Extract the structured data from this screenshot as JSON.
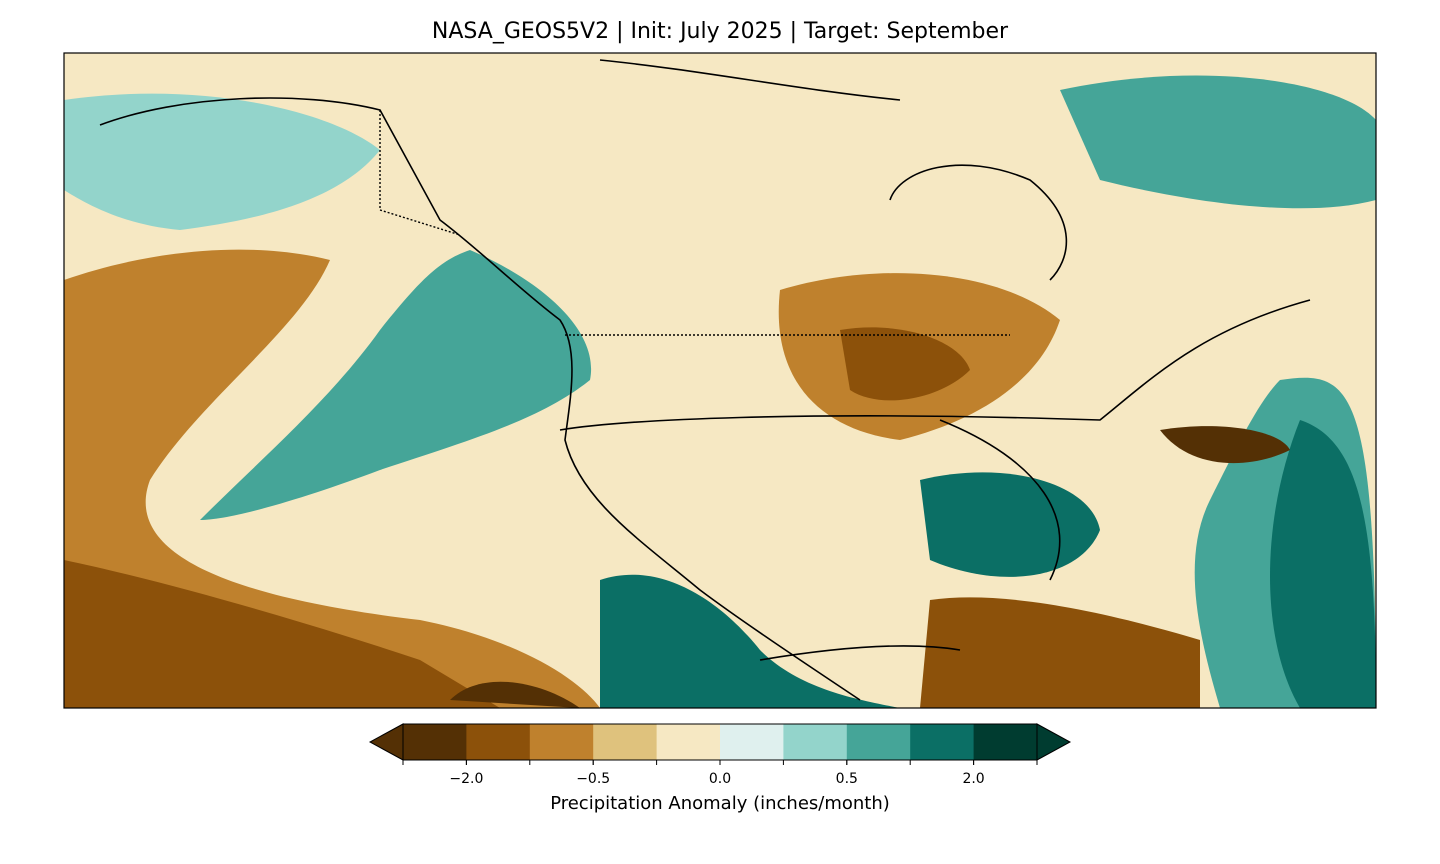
{
  "chart_data": {
    "type": "contour-map",
    "title": "NASA_GEOS5V2 | Init: July 2025 | Target: September",
    "colorbar_label": "Precipitation Anomaly (inches/month)",
    "levels": [
      -3,
      -2,
      -1,
      -0.5,
      -0.25,
      0,
      0.25,
      0.5,
      1,
      2,
      3
    ],
    "colors": [
      "#543005",
      "#8c510a",
      "#bf812d",
      "#dfc27d",
      "#f6e8c3",
      "#dff0ee",
      "#93d4cb",
      "#45a598",
      "#0b6f65",
      "#003c30"
    ],
    "extend": "both",
    "ticks": [
      {
        "value": -2,
        "label": "−2.0"
      },
      {
        "value": -0.5,
        "label": "−0.5"
      },
      {
        "value": 0,
        "label": "0.0"
      },
      {
        "value": 0.5,
        "label": "0.5"
      },
      {
        "value": 2,
        "label": "2.0"
      }
    ]
  }
}
